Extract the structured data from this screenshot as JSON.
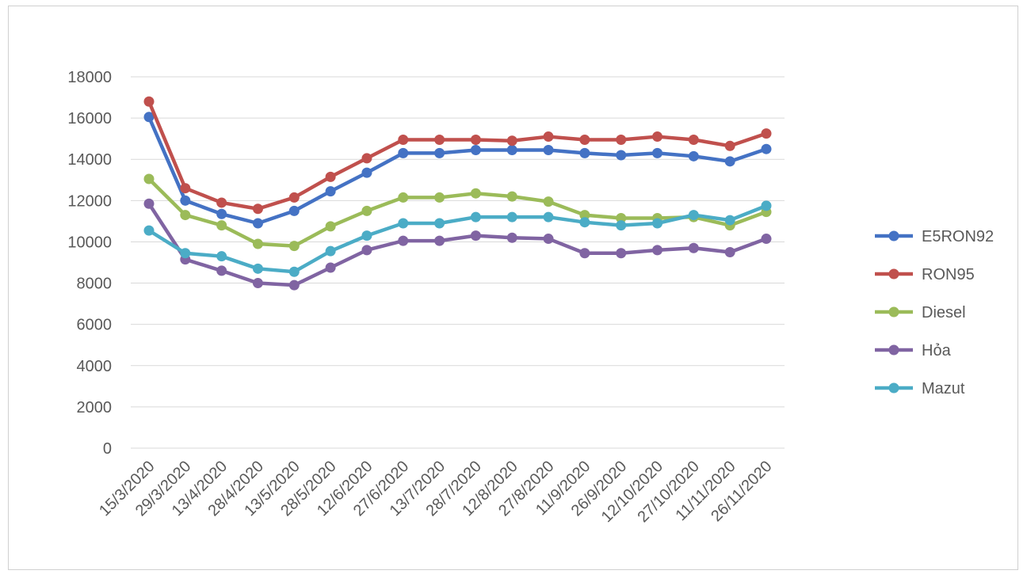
{
  "chart_data": {
    "type": "line",
    "title": "",
    "xlabel": "",
    "ylabel": "",
    "ylim": [
      0,
      18000
    ],
    "yticks": [
      0,
      2000,
      4000,
      6000,
      8000,
      10000,
      12000,
      14000,
      16000,
      18000
    ],
    "grid": "horizontal",
    "legend_position": "right",
    "categories": [
      "15/3/2020",
      "29/3/2020",
      "13/4/2020",
      "28/4/2020",
      "13/5/2020",
      "28/5/2020",
      "12/6/2020",
      "27/6/2020",
      "13/7/2020",
      "28/7/2020",
      "12/8/2020",
      "27/8/2020",
      "11/9/2020",
      "26/9/2020",
      "12/10/2020",
      "27/10/2020",
      "11/11/2020",
      "26/11/2020"
    ],
    "series": [
      {
        "name": "E5RON92",
        "color": "#4472C4",
        "values": [
          16050,
          12000,
          11350,
          10900,
          11500,
          12450,
          13350,
          14300,
          14300,
          14450,
          14450,
          14450,
          14300,
          14200,
          14300,
          14150,
          13900,
          14500
        ]
      },
      {
        "name": "RON95",
        "color": "#C0504D",
        "values": [
          16800,
          12600,
          11900,
          11600,
          12150,
          13150,
          14050,
          14950,
          14950,
          14950,
          14900,
          15100,
          14950,
          14950,
          15100,
          14950,
          14650,
          15250
        ]
      },
      {
        "name": "Diesel",
        "color": "#9BBB59",
        "values": [
          13050,
          11300,
          10800,
          9900,
          9800,
          10750,
          11500,
          12150,
          12150,
          12350,
          12200,
          11950,
          11300,
          11150,
          11150,
          11200,
          10800,
          11450
        ]
      },
      {
        "name": "Hỏa",
        "color": "#8064A2",
        "values": [
          11850,
          9150,
          8600,
          8000,
          7900,
          8750,
          9600,
          10050,
          10050,
          10300,
          10200,
          10150,
          9450,
          9450,
          9600,
          9700,
          9500,
          10150
        ]
      },
      {
        "name": "Mazut",
        "color": "#4BACC6",
        "values": [
          10550,
          9450,
          9300,
          8700,
          8550,
          9550,
          10300,
          10900,
          10900,
          11200,
          11200,
          11200,
          10950,
          10800,
          10900,
          11300,
          11050,
          11750
        ]
      }
    ]
  }
}
